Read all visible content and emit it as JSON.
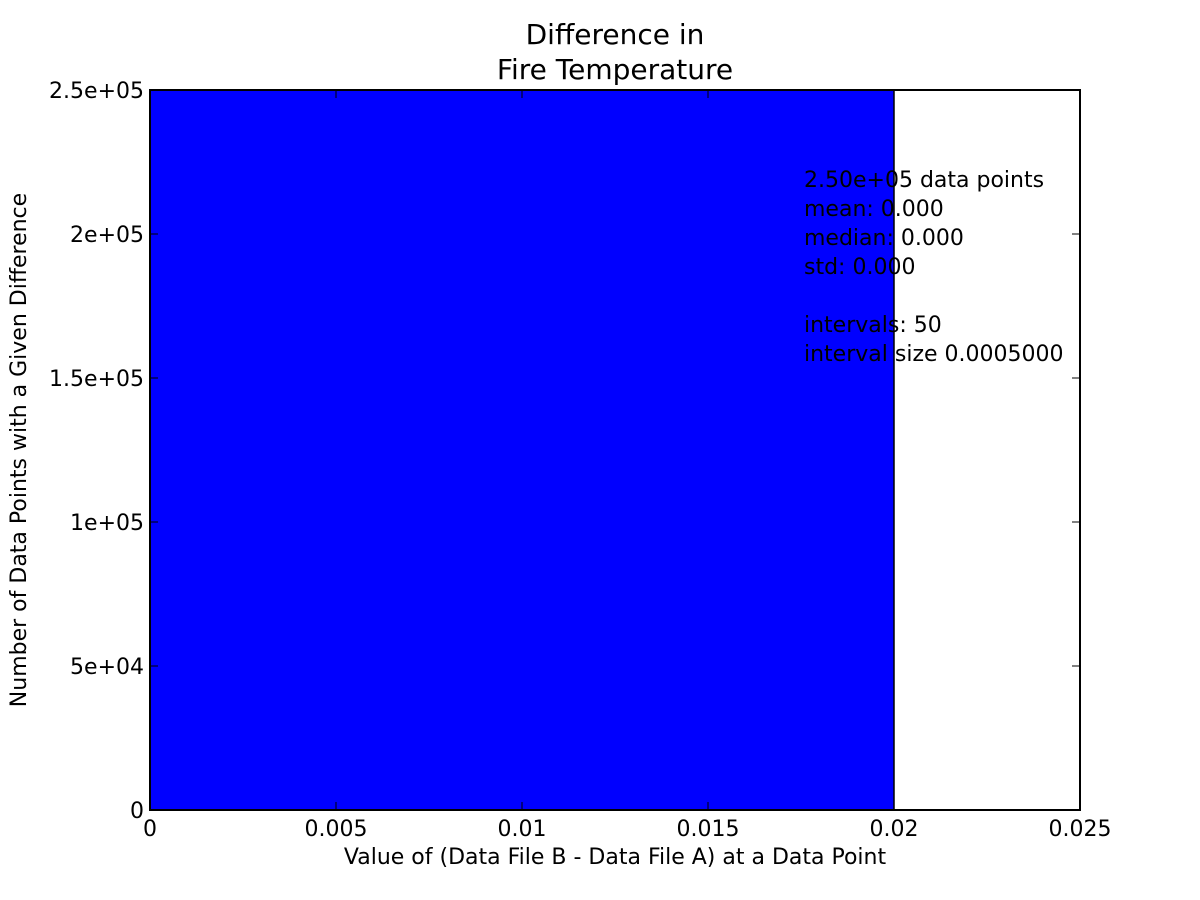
{
  "chart_data": {
    "type": "bar",
    "title": [
      "Difference in",
      "Fire Temperature"
    ],
    "xlabel": "Value of (Data File B - Data File A) at a Data Point",
    "ylabel": "Number of Data Points with a Given Difference",
    "xlim": [
      0,
      0.025
    ],
    "ylim": [
      0,
      250000
    ],
    "x_ticks": [
      {
        "value": 0,
        "label": "0"
      },
      {
        "value": 0.005,
        "label": "0.005"
      },
      {
        "value": 0.01,
        "label": "0.01"
      },
      {
        "value": 0.015,
        "label": "0.015"
      },
      {
        "value": 0.02,
        "label": "0.02"
      },
      {
        "value": 0.025,
        "label": "0.025"
      }
    ],
    "y_ticks": [
      {
        "value": 0,
        "label": "0"
      },
      {
        "value": 50000,
        "label": "5e+04"
      },
      {
        "value": 100000,
        "label": "1e+05"
      },
      {
        "value": 150000,
        "label": "1.5e+05"
      },
      {
        "value": 200000,
        "label": "2e+05"
      },
      {
        "value": 250000,
        "label": "2.5e+05"
      }
    ],
    "bars": [
      {
        "x_start": 0,
        "x_end": 0.02,
        "value": 250000
      }
    ],
    "bar_color": "#0000ff",
    "grid": false,
    "legend": "none",
    "stats_text": [
      "2.50e+05 data points",
      "mean: 0.000",
      "median: 0.000",
      "std: 0.000",
      "",
      "intervals: 50",
      "interval size 0.0005000"
    ]
  }
}
